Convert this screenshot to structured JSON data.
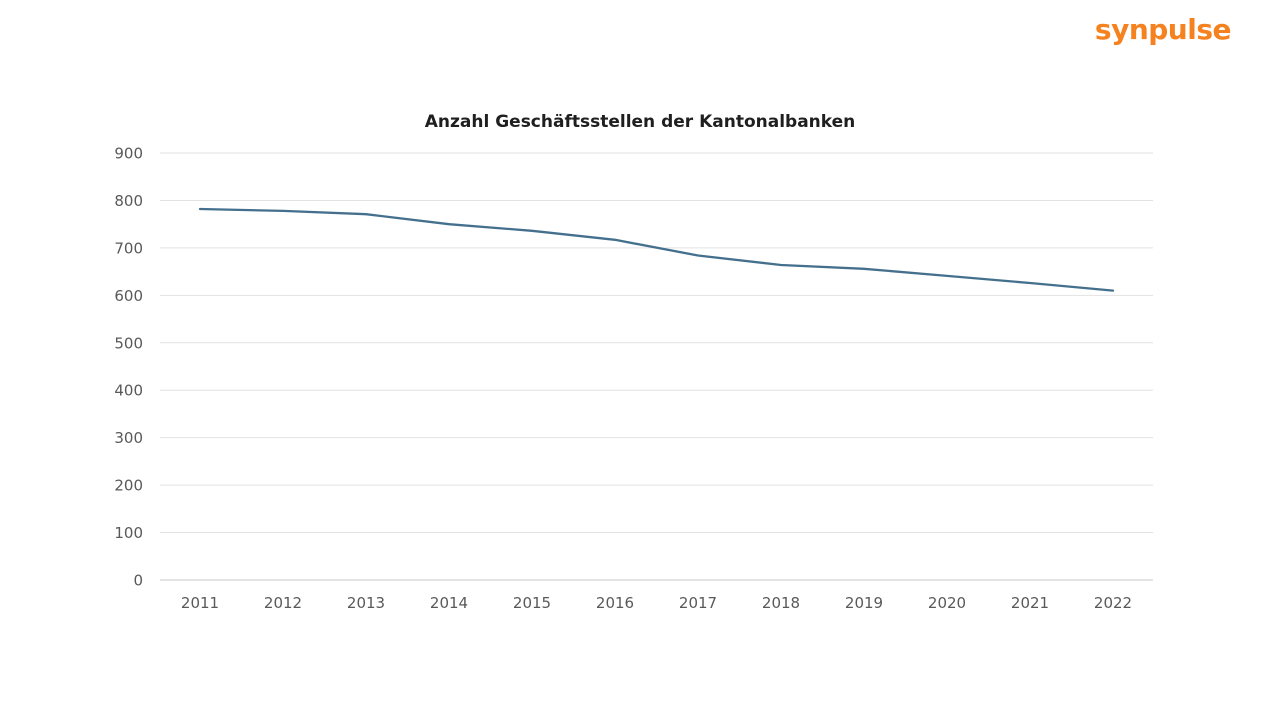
{
  "logo": {
    "text": "synpulse",
    "color": "#F5821F"
  },
  "chart_data": {
    "type": "line",
    "title": "Anzahl Geschäftsstellen der Kantonalbanken",
    "categories": [
      "2011",
      "2012",
      "2013",
      "2014",
      "2015",
      "2016",
      "2017",
      "2018",
      "2019",
      "2020",
      "2021",
      "2022"
    ],
    "values": [
      782,
      778,
      771,
      750,
      736,
      717,
      684,
      664,
      656,
      641,
      626,
      610
    ],
    "xlabel": "",
    "ylabel": "",
    "ylim": [
      0,
      900
    ],
    "ytick_step": 100,
    "yticks": [
      0,
      100,
      200,
      300,
      400,
      500,
      600,
      700,
      800,
      900
    ],
    "grid": "horizontal",
    "legend": "none",
    "style": {
      "line_color": "#44708E",
      "grid_color": "#E2E2E2",
      "baseline_color": "#C9C9C9",
      "tick_label_color": "#595959"
    }
  }
}
